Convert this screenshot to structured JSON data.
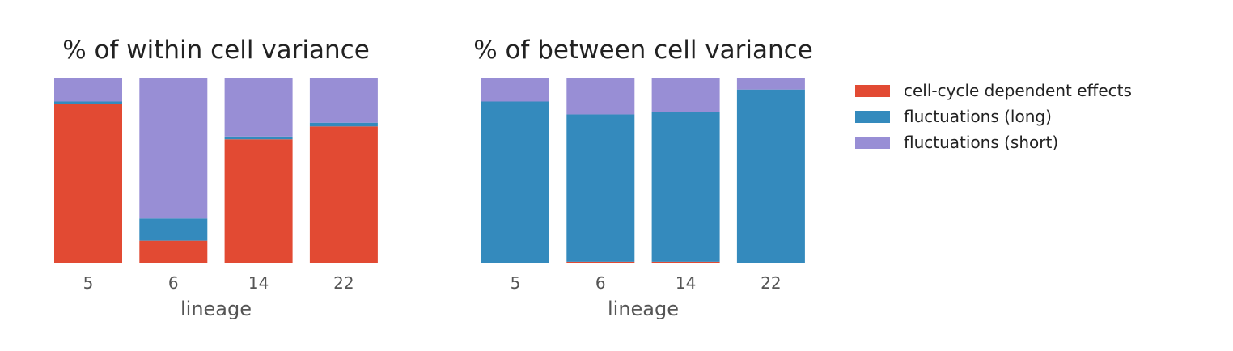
{
  "chart_data": [
    {
      "type": "bar",
      "stacked": true,
      "normalized": true,
      "title": "% of within cell variance",
      "xlabel": "lineage",
      "ylabel": "",
      "ylim": [
        0,
        1
      ],
      "categories": [
        "5",
        "6",
        "14",
        "22"
      ],
      "series": [
        {
          "name": "cell-cycle dependent effects",
          "values": [
            0.86,
            0.12,
            0.67,
            0.74
          ]
        },
        {
          "name": "fluctuations (long)",
          "values": [
            0.015,
            0.12,
            0.015,
            0.02
          ]
        },
        {
          "name": "fluctuations (short)",
          "values": [
            0.125,
            0.76,
            0.315,
            0.24
          ]
        }
      ]
    },
    {
      "type": "bar",
      "stacked": true,
      "normalized": true,
      "title": "% of between cell variance",
      "xlabel": "lineage",
      "ylabel": "",
      "ylim": [
        0,
        1
      ],
      "categories": [
        "5",
        "6",
        "14",
        "22"
      ],
      "series": [
        {
          "name": "cell-cycle dependent effects",
          "values": [
            0.0,
            0.005,
            0.005,
            0.0
          ]
        },
        {
          "name": "fluctuations (long)",
          "values": [
            0.875,
            0.8,
            0.815,
            0.94
          ]
        },
        {
          "name": "fluctuations (short)",
          "values": [
            0.125,
            0.195,
            0.18,
            0.06
          ]
        }
      ]
    }
  ],
  "legend": {
    "placement": "right",
    "items": [
      {
        "label": "cell-cycle dependent effects",
        "color": "#E24A33"
      },
      {
        "label": "fluctuations (long)",
        "color": "#348ABD"
      },
      {
        "label": "fluctuations (short)",
        "color": "#988ED5"
      }
    ]
  },
  "colors": [
    "#E24A33",
    "#348ABD",
    "#988ED5"
  ]
}
